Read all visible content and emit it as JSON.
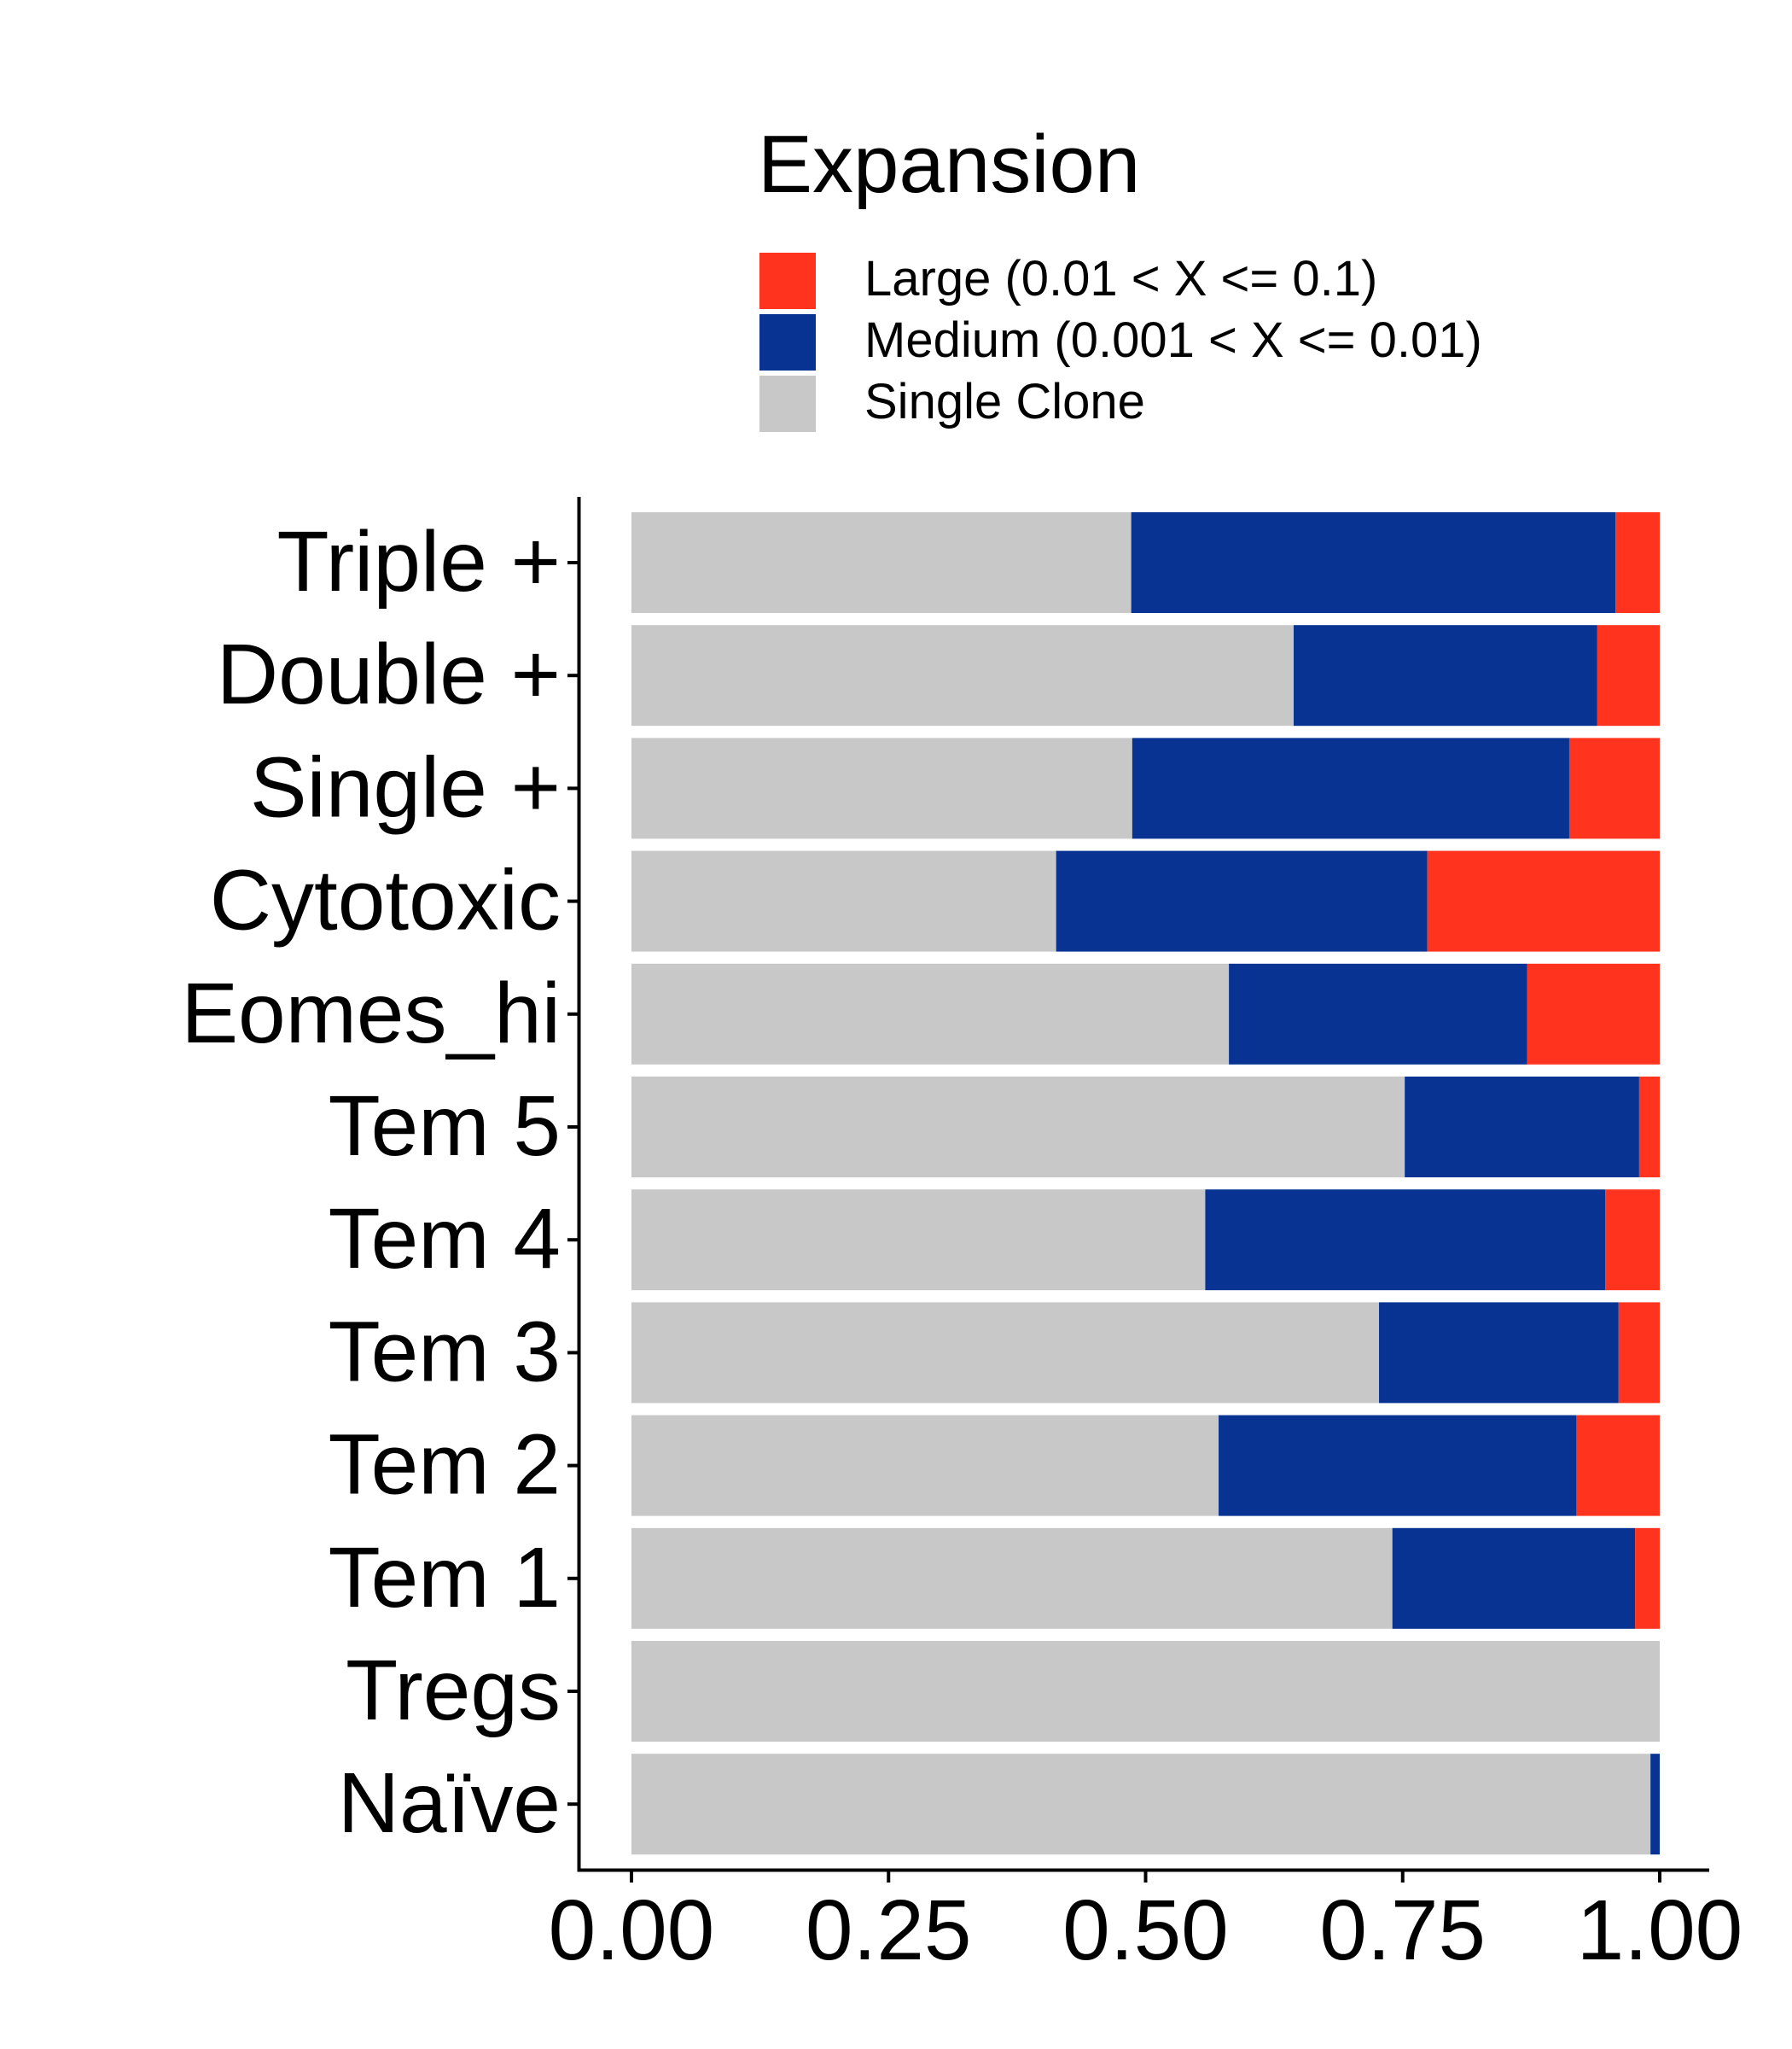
{
  "chart_data": {
    "type": "bar",
    "orientation": "horizontal",
    "stacked": true,
    "title": "",
    "xlabel": "",
    "ylabel": "",
    "xlim": [
      0,
      1
    ],
    "grid": false,
    "categories": [
      "Triple +",
      "Double +",
      "Single +",
      "Cytotoxic",
      "Eomes_hi",
      "Tem 5",
      "Tem 4",
      "Tem 3",
      "Tem 2",
      "Tem 1",
      "Tregs",
      "Naïve"
    ],
    "x_ticks": [
      "0.00",
      "0.25",
      "0.50",
      "0.75",
      "1.00"
    ],
    "series": [
      {
        "name": "Single Clone",
        "color": "#C8C8C8",
        "values": [
          0.486,
          0.644,
          0.487,
          0.413,
          0.581,
          0.752,
          0.558,
          0.727,
          0.571,
          0.74,
          1.0,
          0.991
        ]
      },
      {
        "name": "Medium (0.001 < X <= 0.01)",
        "color": "#083393",
        "values": [
          0.471,
          0.295,
          0.425,
          0.361,
          0.29,
          0.228,
          0.389,
          0.233,
          0.348,
          0.236,
          0.0,
          0.009
        ]
      },
      {
        "name": "Large (0.01 < X <= 0.1)",
        "color": "#FF331E",
        "values": [
          0.043,
          0.061,
          0.088,
          0.226,
          0.129,
          0.02,
          0.053,
          0.04,
          0.081,
          0.024,
          0.0,
          0.0
        ]
      }
    ],
    "legend": {
      "title": "Expansion",
      "placement": "top",
      "order": [
        "Large (0.01 < X <= 0.1)",
        "Medium (0.001 < X <= 0.01)",
        "Single Clone"
      ]
    }
  }
}
